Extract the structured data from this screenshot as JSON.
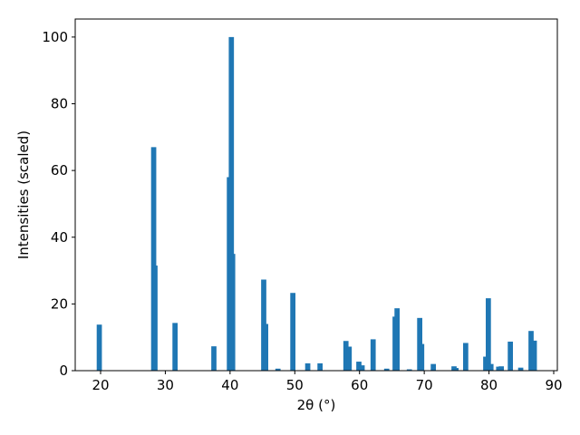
{
  "chart_data": {
    "type": "bar",
    "x": [
      19.8,
      28.2,
      28.4,
      31.5,
      37.5,
      39.9,
      40.2,
      40.4,
      45.2,
      45.5,
      47.4,
      49.7,
      52.0,
      53.9,
      57.9,
      58.4,
      59.9,
      60.4,
      62.1,
      64.2,
      65.5,
      65.8,
      67.7,
      69.3,
      69.6,
      71.4,
      74.6,
      74.9,
      76.4,
      79.5,
      79.9,
      80.3,
      81.5,
      81.9,
      83.3,
      84.9,
      86.5,
      87.0
    ],
    "values": [
      13.8,
      67,
      31.5,
      14.3,
      7.3,
      58,
      100,
      35,
      27.3,
      14,
      0.6,
      23.3,
      2.2,
      2.2,
      8.9,
      7.2,
      2.7,
      1.6,
      9.4,
      0.6,
      16.2,
      18.7,
      0.4,
      15.8,
      8,
      2,
      1.3,
      0.8,
      8.3,
      4.2,
      21.7,
      2,
      1.2,
      1.3,
      8.7,
      0.9,
      11.9,
      9
    ],
    "color": "#1f77b4",
    "xlabel": "2θ (°)",
    "ylabel": "Intensities (scaled)",
    "xlim": [
      16.08,
      90.56
    ],
    "ylim": [
      0,
      105.4
    ],
    "xticks": [
      20,
      30,
      40,
      50,
      60,
      70,
      80,
      90
    ],
    "yticks": [
      0,
      20,
      40,
      60,
      80,
      100
    ],
    "grid": false
  }
}
